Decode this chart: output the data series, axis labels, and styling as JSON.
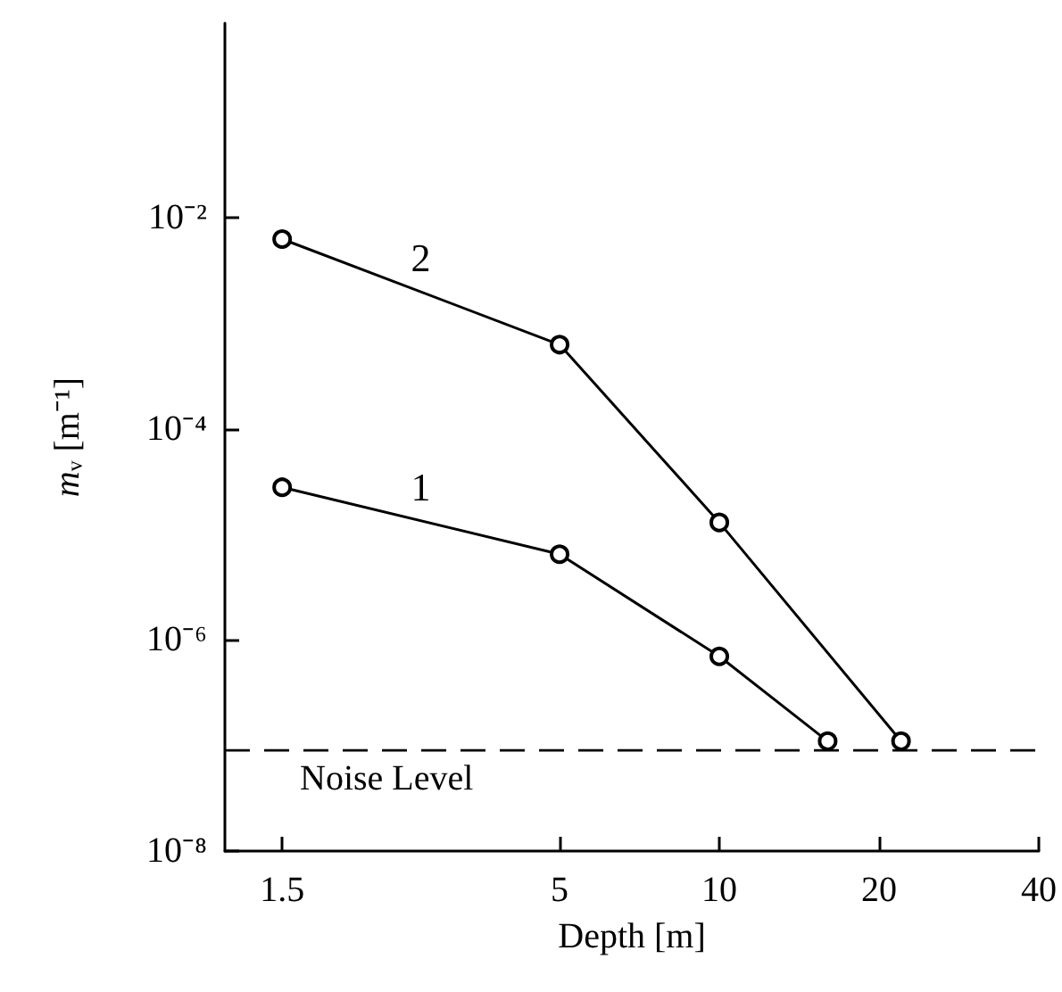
{
  "chart_data": {
    "type": "line",
    "xlabel": "Depth [m]",
    "ylabel": "mᵥ [m⁻¹]",
    "log": "xy",
    "marker": "circle",
    "line_style": "solid",
    "grid": false,
    "legend": false,
    "xlim": [
      1.17,
      40
    ],
    "xticks": [
      1.5,
      5,
      10,
      20,
      40
    ],
    "ylim": [
      1e-08,
      0.7
    ],
    "yticks": [
      {
        "value": 0.01,
        "label": "10⁻²"
      },
      {
        "value": 0.0001,
        "label": "10⁻⁴"
      },
      {
        "value": 1e-06,
        "label": "10⁻⁶"
      },
      {
        "value": 1e-08,
        "label": "10⁻⁸"
      }
    ],
    "series": [
      {
        "name": "1",
        "color": "#000000",
        "x": [
          1.5,
          5,
          10,
          16
        ],
        "values": [
          2.8e-05,
          6.5e-06,
          7e-07,
          1.1e-07
        ]
      },
      {
        "name": "2",
        "color": "#000000",
        "x": [
          1.5,
          5,
          10,
          22
        ],
        "values": [
          0.0063,
          0.00063,
          1.3e-05,
          1.1e-07
        ]
      }
    ],
    "ref_lines": [
      {
        "axis": "y",
        "value": 9e-08,
        "label": "Noise Level",
        "color": "#000000",
        "line_style": "dashed"
      }
    ]
  }
}
